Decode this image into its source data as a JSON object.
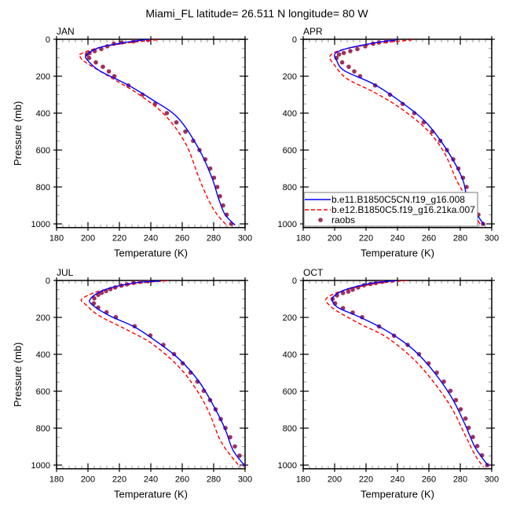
{
  "title": "Miami_FL  latitude= 26.511 N longitude= 80 W",
  "chart_data": {
    "type": "line",
    "xlabel": "Temperature (K)",
    "ylabel": "Pressure (mb)",
    "xlim": [
      180,
      300
    ],
    "ylim": [
      1020,
      0
    ],
    "y_inverted": true,
    "x_ticks": [
      180,
      200,
      220,
      240,
      260,
      280,
      300
    ],
    "y_ticks": [
      0,
      200,
      400,
      600,
      800,
      1000
    ],
    "grid": false,
    "legend": {
      "panel": "APR",
      "placement": "bottom-left",
      "entries": [
        {
          "name": "b.e11.B1850C5CN.f19_g16.008",
          "style": "solid",
          "color": "#0000ff"
        },
        {
          "name": "b.e12.B1850C5.f19_g16.21ka.007",
          "style": "dashed",
          "color": "#ff0000"
        },
        {
          "name": "raobs",
          "style": "marker",
          "color": "#a0305a"
        }
      ]
    },
    "series_colors": {
      "model1": "#0000ff",
      "model2": "#ff0000",
      "raobs": "#a0305a"
    },
    "panels": [
      {
        "label": "JAN",
        "model1": [
          [
            0,
            238.7
          ],
          [
            17,
            224
          ],
          [
            45,
            207.3
          ],
          [
            85,
            199
          ],
          [
            114,
            199.8
          ],
          [
            170,
            207.3
          ],
          [
            241,
            224
          ],
          [
            326,
            240.7
          ],
          [
            426,
            257.3
          ],
          [
            596,
            270.7
          ],
          [
            752,
            279
          ],
          [
            865,
            283.2
          ],
          [
            950,
            287.3
          ],
          [
            1007,
            293.7
          ]
        ],
        "model2": [
          [
            3,
            244
          ],
          [
            21,
            224
          ],
          [
            45,
            207
          ],
          [
            78,
            195.7
          ],
          [
            92,
            194.8
          ],
          [
            128,
            199
          ],
          [
            213,
            215.7
          ],
          [
            298,
            232.3
          ],
          [
            411,
            249
          ],
          [
            567,
            262.3
          ],
          [
            752,
            270.7
          ],
          [
            880,
            277.3
          ],
          [
            950,
            282.3
          ],
          [
            1014,
            289
          ]
        ],
        "raobs": [
          [
            4,
            238.2
          ],
          [
            11,
            229
          ],
          [
            17,
            221.5
          ],
          [
            24,
            216.5
          ],
          [
            38,
            212.3
          ],
          [
            53,
            208.5
          ],
          [
            64,
            204.3
          ],
          [
            74,
            201
          ],
          [
            82,
            199.3
          ],
          [
            101,
            200.7
          ],
          [
            125,
            205
          ],
          [
            149,
            209.5
          ],
          [
            174,
            213.3
          ],
          [
            200,
            216.8
          ],
          [
            250,
            225.7
          ],
          [
            300,
            234.7
          ],
          [
            350,
            242.7
          ],
          [
            400,
            250.2
          ],
          [
            450,
            256.3
          ],
          [
            500,
            262
          ],
          [
            550,
            267
          ],
          [
            600,
            271
          ],
          [
            650,
            274.7
          ],
          [
            700,
            277.8
          ],
          [
            750,
            280.2
          ],
          [
            800,
            282.3
          ],
          [
            850,
            284
          ],
          [
            900,
            286
          ],
          [
            950,
            288.3
          ],
          [
            1000,
            291.2
          ]
        ]
      },
      {
        "label": "APR",
        "model1": [
          [
            3,
            239.5
          ],
          [
            21,
            224.5
          ],
          [
            50,
            207.8
          ],
          [
            78,
            200.3
          ],
          [
            113,
            201.2
          ],
          [
            170,
            206.2
          ],
          [
            241,
            224.5
          ],
          [
            333,
            241.2
          ],
          [
            447,
            257.8
          ],
          [
            596,
            271.2
          ],
          [
            752,
            281.2
          ],
          [
            865,
            284.5
          ],
          [
            936,
            289.5
          ],
          [
            1007,
            295.3
          ]
        ],
        "model2": [
          [
            3,
            249.5
          ],
          [
            26,
            224.5
          ],
          [
            57,
            204.5
          ],
          [
            92,
            197
          ],
          [
            135,
            199.5
          ],
          [
            213,
            207.8
          ],
          [
            284,
            224.5
          ],
          [
            369,
            241.2
          ],
          [
            482,
            257.8
          ],
          [
            610,
            269.5
          ],
          [
            766,
            277.8
          ],
          [
            865,
            284.5
          ],
          [
            950,
            289.5
          ],
          [
            1014,
            293.2
          ]
        ],
        "raobs": [
          [
            4,
            237.5
          ],
          [
            11,
            232.8
          ],
          [
            17,
            228.2
          ],
          [
            24,
            224.5
          ],
          [
            38,
            219.5
          ],
          [
            53,
            214.5
          ],
          [
            64,
            210
          ],
          [
            74,
            205.8
          ],
          [
            82,
            202.8
          ],
          [
            101,
            201.2
          ],
          [
            125,
            204.8
          ],
          [
            149,
            209
          ],
          [
            174,
            212.5
          ],
          [
            200,
            216.2
          ],
          [
            250,
            225.8
          ],
          [
            300,
            235.2
          ],
          [
            350,
            243.3
          ],
          [
            400,
            250.7
          ],
          [
            450,
            256.7
          ],
          [
            500,
            262.2
          ],
          [
            550,
            267.3
          ],
          [
            600,
            271.5
          ],
          [
            650,
            275.5
          ],
          [
            700,
            278.8
          ],
          [
            750,
            281.7
          ],
          [
            800,
            284
          ],
          [
            850,
            286.2
          ],
          [
            900,
            288.5
          ],
          [
            950,
            291.5
          ],
          [
            1000,
            294.5
          ]
        ]
      },
      {
        "label": "JUL",
        "model1": [
          [
            3,
            245.7
          ],
          [
            14,
            229
          ],
          [
            50,
            210.7
          ],
          [
            100,
            201.5
          ],
          [
            135,
            203.2
          ],
          [
            192,
            214
          ],
          [
            249,
            229
          ],
          [
            313,
            240.7
          ],
          [
            420,
            257.3
          ],
          [
            548,
            270.7
          ],
          [
            691,
            280.7
          ],
          [
            805,
            287.3
          ],
          [
            919,
            292.3
          ],
          [
            1004,
            299.8
          ]
        ],
        "model2": [
          [
            1,
            250.7
          ],
          [
            19,
            229
          ],
          [
            57,
            207.3
          ],
          [
            100,
            196.2
          ],
          [
            128,
            198.2
          ],
          [
            192,
            207.3
          ],
          [
            264,
            224
          ],
          [
            342,
            240.7
          ],
          [
            463,
            257.3
          ],
          [
            591,
            269
          ],
          [
            719,
            277.3
          ],
          [
            862,
            284
          ],
          [
            947,
            290.7
          ],
          [
            1011,
            297
          ]
        ],
        "raobs": [
          [
            4,
            238.2
          ],
          [
            7,
            233.2
          ],
          [
            13,
            229
          ],
          [
            21,
            224.8
          ],
          [
            28,
            221.2
          ],
          [
            38,
            217.3
          ],
          [
            47,
            214.3
          ],
          [
            57,
            211.5
          ],
          [
            67,
            208.7
          ],
          [
            78,
            206.5
          ],
          [
            97,
            204
          ],
          [
            124,
            203.7
          ],
          [
            147,
            206.5
          ],
          [
            172,
            211.8
          ],
          [
            199,
            217.7
          ],
          [
            248,
            229.7
          ],
          [
            298,
            239.7
          ],
          [
            349,
            248
          ],
          [
            399,
            254.8
          ],
          [
            449,
            260.3
          ],
          [
            499,
            265.3
          ],
          [
            548,
            269.7
          ],
          [
            598,
            273.7
          ],
          [
            648,
            277.7
          ],
          [
            698,
            281.2
          ],
          [
            751,
            284.5
          ],
          [
            799,
            287.5
          ],
          [
            849,
            290.5
          ],
          [
            899,
            293.5
          ],
          [
            949,
            296.5
          ],
          [
            1000,
            299.8
          ]
        ]
      },
      {
        "label": "OCT",
        "model1": [
          [
            0,
            240.3
          ],
          [
            14,
            224.5
          ],
          [
            47,
            207.8
          ],
          [
            85,
            199.5
          ],
          [
            114,
            198.7
          ],
          [
            150,
            202.8
          ],
          [
            199,
            216.2
          ],
          [
            271,
            232.8
          ],
          [
            370,
            249.5
          ],
          [
            491,
            262.8
          ],
          [
            634,
            274.5
          ],
          [
            776,
            282.8
          ],
          [
            905,
            289.5
          ],
          [
            1004,
            297.8
          ]
        ],
        "model2": [
          [
            0,
            246.2
          ],
          [
            19,
            224.5
          ],
          [
            57,
            204.5
          ],
          [
            93,
            195.3
          ],
          [
            121,
            195.3
          ],
          [
            164,
            201.2
          ],
          [
            235,
            216.2
          ],
          [
            306,
            232.8
          ],
          [
            420,
            249.5
          ],
          [
            548,
            262.8
          ],
          [
            691,
            274.5
          ],
          [
            833,
            282.8
          ],
          [
            947,
            289.5
          ],
          [
            1011,
            294.8
          ]
        ],
        "raobs": [
          [
            0,
            237
          ],
          [
            7,
            230.3
          ],
          [
            14,
            226.2
          ],
          [
            19,
            222.8
          ],
          [
            26,
            218.7
          ],
          [
            38,
            215
          ],
          [
            50,
            211.5
          ],
          [
            60,
            208.7
          ],
          [
            68,
            205.3
          ],
          [
            81,
            201.5
          ],
          [
            100,
            198.7
          ],
          [
            124,
            200.3
          ],
          [
            150,
            205.3
          ],
          [
            174,
            211.5
          ],
          [
            199,
            217.5
          ],
          [
            249,
            228.3
          ],
          [
            299,
            237.8
          ],
          [
            349,
            246.5
          ],
          [
            399,
            253.7
          ],
          [
            449,
            259.8
          ],
          [
            499,
            265
          ],
          [
            548,
            269.5
          ],
          [
            598,
            273.7
          ],
          [
            648,
            277.2
          ],
          [
            698,
            280.2
          ],
          [
            748,
            283.3
          ],
          [
            798,
            285.3
          ],
          [
            848,
            288
          ],
          [
            897,
            290.8
          ],
          [
            947,
            293.8
          ],
          [
            1000,
            297.2
          ]
        ]
      }
    ]
  }
}
